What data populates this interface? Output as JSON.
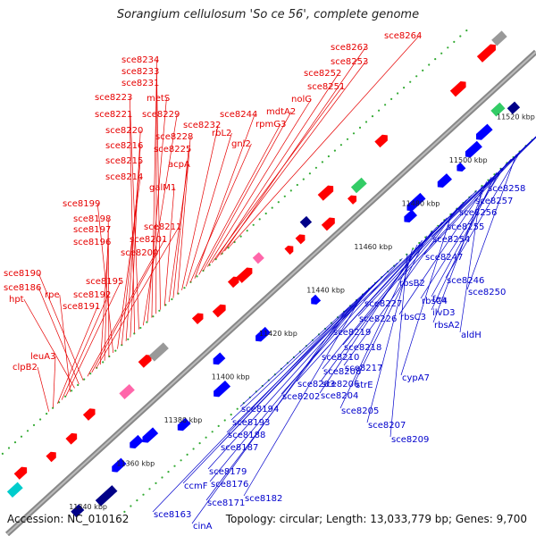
{
  "title": "Sorangium cellulosum 'So ce 56', complete genome",
  "footer": {
    "accession": "Accession: NC_010162",
    "topology": "Topology: circular; Length: 13,033,779 bp; Genes: 9,700"
  },
  "colors": {
    "forward_label": "#e60000",
    "reverse_label": "#0000cc",
    "backbone": "#888888",
    "dots": "#33aa33",
    "feature_red": "#ff0000",
    "feature_blue": "#0000ff"
  },
  "scale_labels": [
    {
      "text": "11340 kbp"
    },
    {
      "text": "11360 kbp"
    },
    {
      "text": "11380 kbp"
    },
    {
      "text": "11400 kbp"
    },
    {
      "text": "11420 kbp"
    },
    {
      "text": "11440 kbp"
    },
    {
      "text": "11460 kbp"
    },
    {
      "text": "11480 kbp"
    },
    {
      "text": "11500 kbp"
    },
    {
      "text": "11520 kbp"
    }
  ],
  "forward_labels": [
    "sce8264",
    "sce8263",
    "sce8253",
    "sce8252",
    "sce8251",
    "nolG",
    "mdtA2",
    "rpmG3",
    "sce8244",
    "gnl2",
    "rbL2",
    "sce8232",
    "sce8228",
    "sce8225",
    "acpA",
    "galM1",
    "sce8234",
    "sce8233",
    "sce8231",
    "metS",
    "sce8229",
    "sce8223",
    "sce8221",
    "sce8220",
    "sce8216",
    "sce8215",
    "sce8214",
    "sce8199",
    "sce8198",
    "sce8197",
    "sce8196",
    "sce8211",
    "sce8201",
    "sce8200",
    "sce8190",
    "sce8186",
    "hpt",
    "rpe",
    "sce8195",
    "sce8192",
    "sce8191",
    "leuA3",
    "clpB2"
  ],
  "reverse_labels": [
    "sce8258",
    "sce8257",
    "sce8256",
    "sce8255",
    "sce8254",
    "sce8247",
    "sce8246",
    "sce8250",
    "rbsB2",
    "rbsC4",
    "faa",
    "ilvD3",
    "rbsC3",
    "rbsA2",
    "aldH",
    "sce8227",
    "sce8226",
    "sce8219",
    "sce8218",
    "sce8217",
    "cypA7",
    "sce8210",
    "sce8208",
    "sce8203",
    "sce8206",
    "strE",
    "sce8204",
    "sce8205",
    "sce8207",
    "sce8209",
    "sce8202",
    "sce8194",
    "sce8193",
    "sce8188",
    "sce8187",
    "sce8179",
    "sce8176",
    "ccmF",
    "sce8182",
    "sce8171",
    "sce8163",
    "cinA"
  ]
}
